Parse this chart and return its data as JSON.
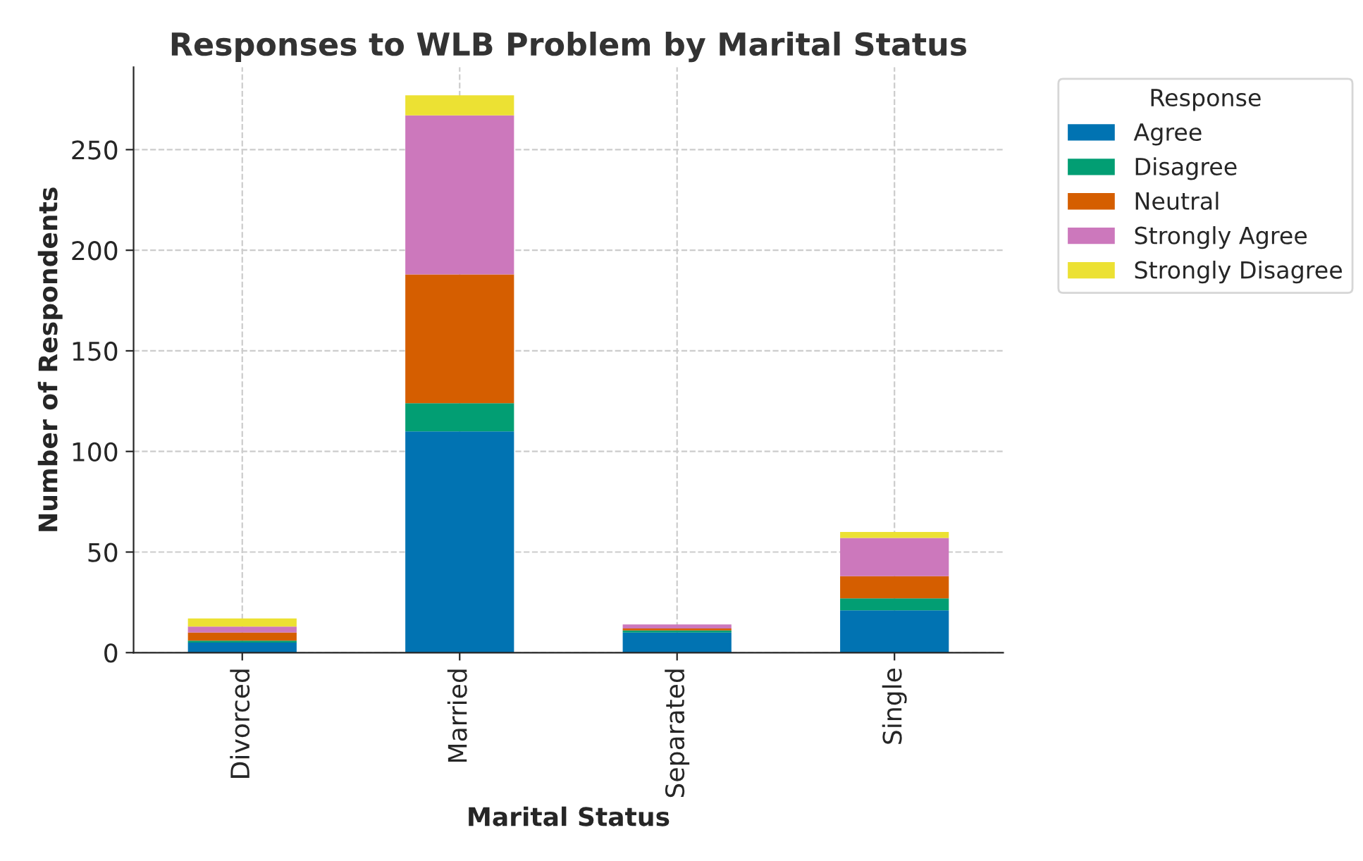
{
  "chart_data": {
    "type": "bar",
    "stacked": true,
    "title": "Responses to WLB Problem by Marital Status",
    "xlabel": "Marital Status",
    "ylabel": "Number of Respondents",
    "legend_title": "Response",
    "categories": [
      "Divorced",
      "Married",
      "Separated",
      "Single"
    ],
    "series": [
      {
        "name": "Agree",
        "color": "#0173b2",
        "values": [
          5,
          110,
          10,
          21
        ]
      },
      {
        "name": "Disagree",
        "color": "#029e73",
        "values": [
          1,
          14,
          1,
          6
        ]
      },
      {
        "name": "Neutral",
        "color": "#d55e00",
        "values": [
          4,
          64,
          1,
          11
        ]
      },
      {
        "name": "Strongly Agree",
        "color": "#cc78bc",
        "values": [
          3,
          79,
          2,
          19
        ]
      },
      {
        "name": "Strongly Disagree",
        "color": "#ece133",
        "values": [
          4,
          10,
          0,
          3
        ]
      }
    ],
    "ylim": [
      0,
      291
    ],
    "yticks": [
      0,
      50,
      100,
      150,
      200,
      250
    ],
    "grid": true,
    "legend": "top right"
  }
}
